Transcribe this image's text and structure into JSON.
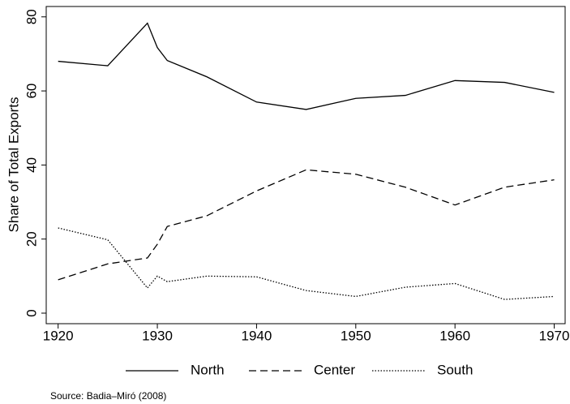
{
  "chart_data": {
    "type": "line",
    "ylabel": "Share of Total Exports",
    "source": "Source: Badia–Miró (2008)",
    "x": [
      1920,
      1925,
      1929,
      1930,
      1931,
      1935,
      1940,
      1945,
      1950,
      1955,
      1960,
      1965,
      1970
    ],
    "series": [
      {
        "name": "North",
        "color": "#000000",
        "linestyle": "solid",
        "values": [
          68,
          66.8,
          78.3,
          71.7,
          68.2,
          63.8,
          57,
          55,
          58,
          58.8,
          62.8,
          62.3,
          59.6
        ]
      },
      {
        "name": "Center",
        "color": "#000000",
        "linestyle": "dashed",
        "values": [
          9,
          13.3,
          14.9,
          18.6,
          23.4,
          26.3,
          33,
          38.7,
          37.5,
          34,
          29.2,
          34,
          36
        ]
      },
      {
        "name": "South",
        "color": "#000000",
        "linestyle": "dotted",
        "values": [
          23,
          19.8,
          6.8,
          10,
          8.5,
          10,
          9.8,
          6.1,
          4.5,
          7,
          8,
          3.7,
          4.5
        ]
      }
    ],
    "xlim": [
      1918.8,
      1971.1
    ],
    "xticks": [
      1920,
      1930,
      1940,
      1950,
      1960,
      1970
    ],
    "ylim": [
      -2.85,
      82.8
    ],
    "yticks": [
      0,
      20,
      40,
      60,
      80
    ],
    "grid": false,
    "legend": "bottom"
  }
}
